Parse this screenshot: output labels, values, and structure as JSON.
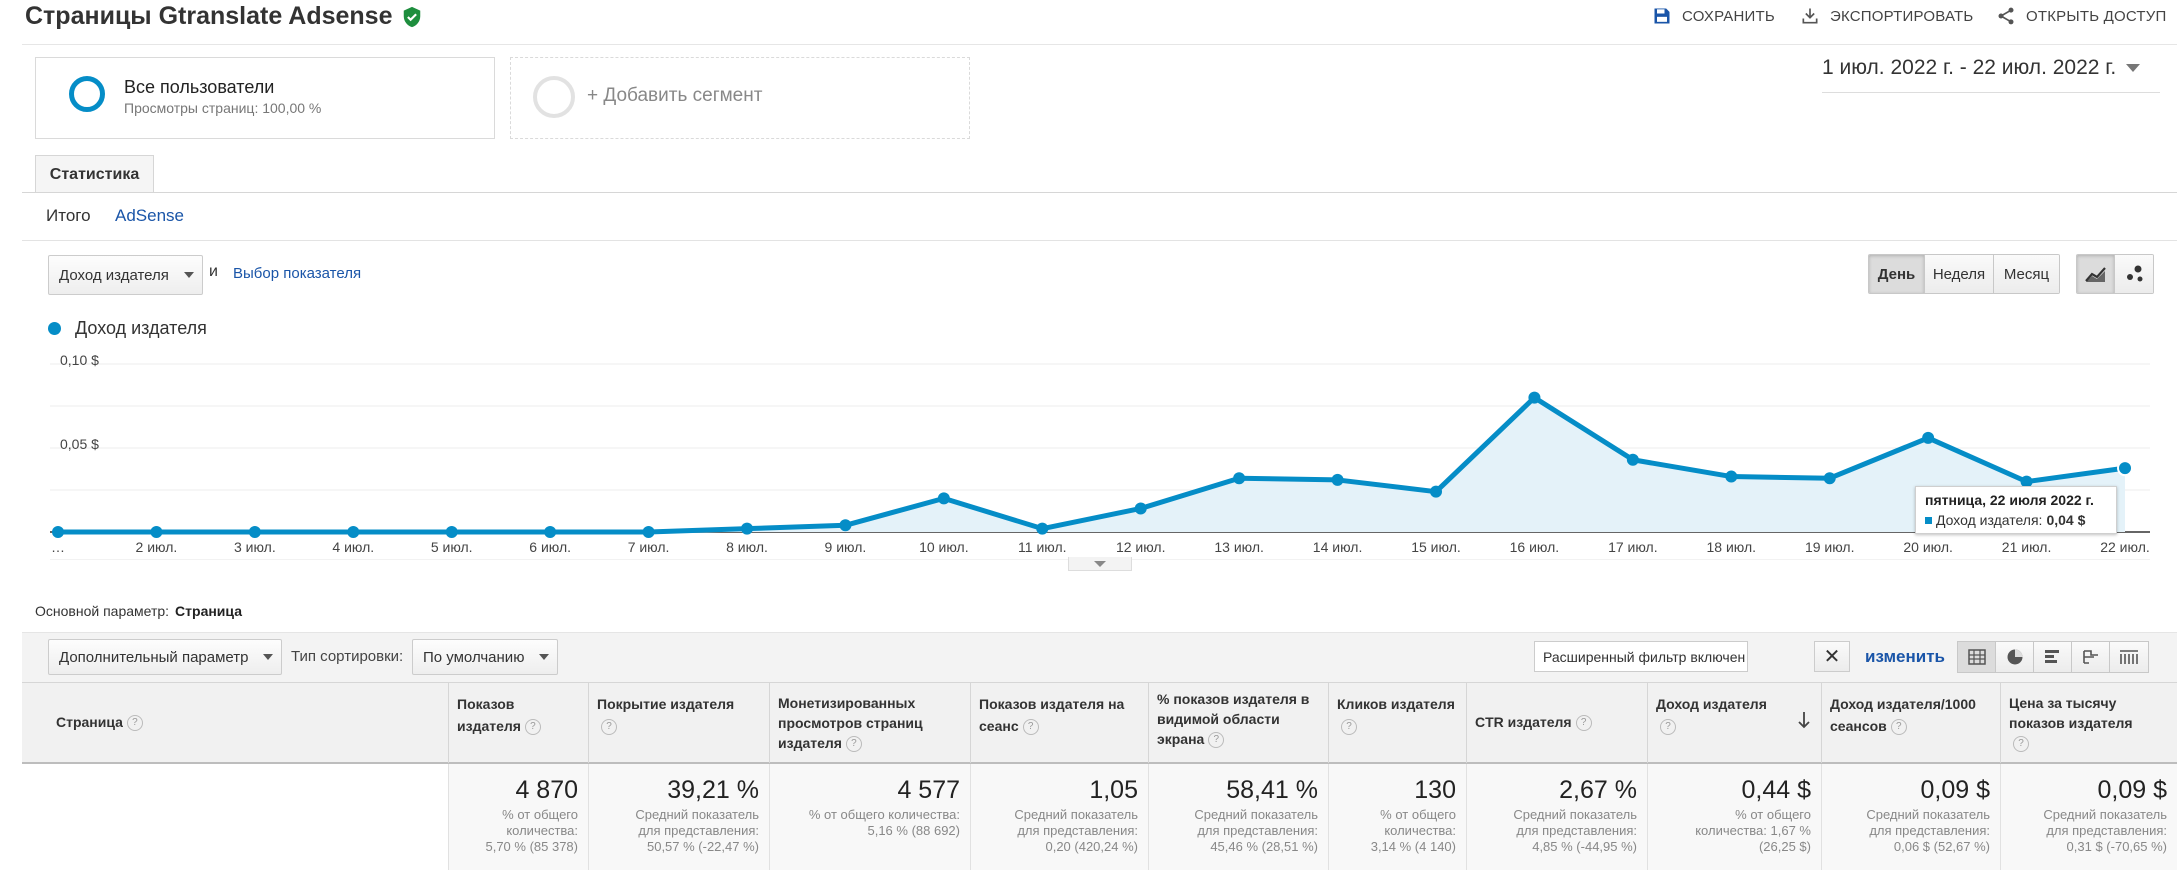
{
  "header": {
    "title": "Страницы Gtranslate Adsense",
    "save": "СОХРАНИТЬ",
    "export": "ЭКСПОРТИРОВАТЬ",
    "share": "ОТКРЫТЬ ДОСТУП"
  },
  "segments": {
    "all_users": "Все пользователи",
    "all_users_sub": "Просмотры страниц: 100,00 %",
    "add_segment": "+ Добавить сегмент"
  },
  "date_range": "1 июл. 2022 г. - 22 июл. 2022 г.",
  "tabs": {
    "stats": "Статистика"
  },
  "subtabs": {
    "summary": "Итого",
    "adsense": "AdSense"
  },
  "metric": {
    "selected": "Доход издателя",
    "and": "и",
    "choose": "Выбор показателя"
  },
  "period_buttons": [
    "День",
    "Неделя",
    "Месяц"
  ],
  "active_period": "День",
  "chart_type_icons": [
    "line-chart-icon",
    "motion-chart-icon"
  ],
  "colors": {
    "series": "#058dc7",
    "fill": "#e4f2f9",
    "link": "#1a55a8"
  },
  "chart_data": {
    "type": "area",
    "legend": "Доход издателя",
    "ytick_labels": [
      "0,10 $",
      "0,05 $"
    ],
    "yticks": [
      0.1,
      0.05
    ],
    "ylim": [
      0,
      0.1
    ],
    "x_labels": [
      "…",
      "2 июл.",
      "3 июл.",
      "4 июл.",
      "5 июл.",
      "6 июл.",
      "7 июл.",
      "8 июл.",
      "9 июл.",
      "10 июл.",
      "11 июл.",
      "12 июл.",
      "13 июл.",
      "14 июл.",
      "15 июл.",
      "16 июл.",
      "17 июл.",
      "18 июл.",
      "19 июл.",
      "20 июл.",
      "21 июл.",
      "22 июл."
    ],
    "series": [
      {
        "name": "Доход издателя",
        "values": [
          0.0,
          0.0,
          0.0,
          0.0,
          0.0,
          0.0,
          0.0,
          0.002,
          0.004,
          0.02,
          0.002,
          0.014,
          0.032,
          0.031,
          0.024,
          0.08,
          0.043,
          0.033,
          0.032,
          0.056,
          0.03,
          0.038
        ]
      }
    ],
    "tooltip": {
      "title": "пятница, 22 июля 2022 г.",
      "label": "Доход издателя:",
      "value": "0,04 $"
    }
  },
  "primary_dimension": {
    "label": "Основной параметр:",
    "value": "Страница"
  },
  "secondary": {
    "param": "Дополнительный параметр",
    "sort_label": "Тип сортировки:",
    "sort_value": "По умолчанию"
  },
  "filter": {
    "text": "Расширенный фильтр включен",
    "clear": "✕",
    "edit": "изменить"
  },
  "table": {
    "columns": [
      "Страница",
      "Показов издателя",
      "Покрытие издателя",
      "Монетизированных просмотров страниц издателя",
      "Показов издателя на сеанс",
      "% показов издателя в видимой области экрана",
      "Кликов издателя",
      "CTR издателя",
      "Доход издателя",
      "Доход издателя/1000 сеансов",
      "Цена за тысячу показов издателя"
    ],
    "totals": [
      {
        "value": "4 870",
        "sub": [
          "% от общего",
          "количества:",
          "5,70 % (85 378)"
        ]
      },
      {
        "value": "39,21 %",
        "sub": [
          "Средний показатель",
          "для представления:",
          "50,57 % (-22,47 %)"
        ]
      },
      {
        "value": "4 577",
        "sub": [
          "% от общего количества:",
          "5,16 % (88 692)"
        ]
      },
      {
        "value": "1,05",
        "sub": [
          "Средний показатель",
          "для представления:",
          "0,20 (420,24 %)"
        ]
      },
      {
        "value": "58,41 %",
        "sub": [
          "Средний показатель",
          "для представления:",
          "45,46 % (28,51 %)"
        ]
      },
      {
        "value": "130",
        "sub": [
          "% от общего",
          "количества:",
          "3,14 % (4 140)"
        ]
      },
      {
        "value": "2,67 %",
        "sub": [
          "Средний показатель",
          "для представления:",
          "4,85 % (-44,95 %)"
        ]
      },
      {
        "value": "0,44 $",
        "sub": [
          "% от общего",
          "количества: 1,67 %",
          "(26,25 $)"
        ]
      },
      {
        "value": "0,09 $",
        "sub": [
          "Средний показатель",
          "для представления:",
          "0,06 $ (52,67 %)"
        ]
      },
      {
        "value": "0,09 $",
        "sub": [
          "Средний показатель",
          "для представления:",
          "0,31 $ (-70,65 %)"
        ]
      }
    ]
  }
}
